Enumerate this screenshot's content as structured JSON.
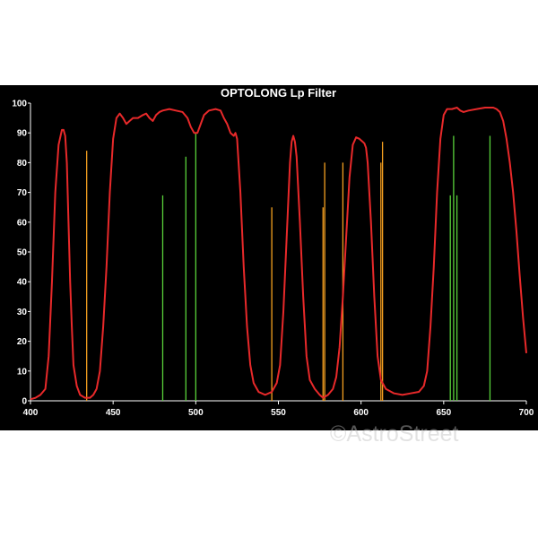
{
  "watermark": "©AstroStreet",
  "chart_data": {
    "type": "line",
    "title": "OPTOLONG Lp Filter",
    "xlabel": "",
    "ylabel": "",
    "xlim": [
      400,
      700
    ],
    "ylim": [
      0,
      100
    ],
    "x_ticks": [
      400,
      450,
      500,
      550,
      600,
      650,
      700
    ],
    "y_ticks": [
      0,
      10,
      20,
      30,
      40,
      50,
      60,
      70,
      80,
      90,
      100
    ],
    "grid": false,
    "colors": {
      "background": "#000000",
      "curve": "#e8292a",
      "axis": "#ffffff",
      "orange_lines": "#f5a020",
      "green_lines": "#59d23a"
    },
    "series": [
      {
        "role": "transmission-curve",
        "points": [
          [
            400,
            0.5
          ],
          [
            403,
            1
          ],
          [
            406,
            2
          ],
          [
            409,
            4
          ],
          [
            411,
            15
          ],
          [
            413,
            40
          ],
          [
            415,
            70
          ],
          [
            417,
            86
          ],
          [
            419,
            91
          ],
          [
            420,
            91
          ],
          [
            421,
            89
          ],
          [
            422,
            80
          ],
          [
            423,
            60
          ],
          [
            424,
            40
          ],
          [
            425,
            25
          ],
          [
            426,
            12
          ],
          [
            428,
            5
          ],
          [
            430,
            2
          ],
          [
            433,
            1
          ],
          [
            436,
            1
          ],
          [
            438,
            2
          ],
          [
            440,
            4
          ],
          [
            442,
            10
          ],
          [
            444,
            25
          ],
          [
            446,
            45
          ],
          [
            448,
            70
          ],
          [
            450,
            88
          ],
          [
            452,
            95
          ],
          [
            454,
            96.5
          ],
          [
            456,
            95
          ],
          [
            458,
            93
          ],
          [
            460,
            94
          ],
          [
            462,
            95
          ],
          [
            465,
            95
          ],
          [
            468,
            96
          ],
          [
            470,
            96.5
          ],
          [
            472,
            95
          ],
          [
            474,
            94
          ],
          [
            476,
            96
          ],
          [
            478,
            97
          ],
          [
            480,
            97.5
          ],
          [
            484,
            98
          ],
          [
            488,
            97.5
          ],
          [
            492,
            97
          ],
          [
            495,
            95
          ],
          [
            497,
            92
          ],
          [
            499,
            90
          ],
          [
            501,
            90
          ],
          [
            503,
            93
          ],
          [
            505,
            96
          ],
          [
            508,
            97.5
          ],
          [
            512,
            98
          ],
          [
            515,
            97.5
          ],
          [
            517,
            95
          ],
          [
            519,
            93
          ],
          [
            521,
            90
          ],
          [
            523,
            89
          ],
          [
            524,
            90
          ],
          [
            525,
            88
          ],
          [
            527,
            70
          ],
          [
            529,
            45
          ],
          [
            531,
            25
          ],
          [
            533,
            12
          ],
          [
            535,
            6
          ],
          [
            538,
            3
          ],
          [
            542,
            2
          ],
          [
            546,
            3
          ],
          [
            549,
            6
          ],
          [
            551,
            12
          ],
          [
            553,
            30
          ],
          [
            555,
            55
          ],
          [
            557,
            80
          ],
          [
            558,
            87
          ],
          [
            559,
            89
          ],
          [
            560,
            87
          ],
          [
            561,
            82
          ],
          [
            563,
            60
          ],
          [
            565,
            35
          ],
          [
            567,
            15
          ],
          [
            569,
            7
          ],
          [
            572,
            4
          ],
          [
            575,
            2
          ],
          [
            577,
            1
          ],
          [
            580,
            2
          ],
          [
            583,
            4
          ],
          [
            585,
            8
          ],
          [
            587,
            18
          ],
          [
            589,
            35
          ],
          [
            591,
            55
          ],
          [
            593,
            75
          ],
          [
            595,
            86
          ],
          [
            597,
            88.5
          ],
          [
            599,
            88
          ],
          [
            601,
            87
          ],
          [
            602,
            86.5
          ],
          [
            603,
            85
          ],
          [
            604,
            80
          ],
          [
            606,
            60
          ],
          [
            608,
            35
          ],
          [
            610,
            15
          ],
          [
            612,
            7
          ],
          [
            615,
            4
          ],
          [
            620,
            2.5
          ],
          [
            625,
            2
          ],
          [
            630,
            2.5
          ],
          [
            635,
            3
          ],
          [
            638,
            5
          ],
          [
            640,
            10
          ],
          [
            642,
            25
          ],
          [
            644,
            45
          ],
          [
            646,
            70
          ],
          [
            648,
            88
          ],
          [
            650,
            96
          ],
          [
            652,
            98
          ],
          [
            655,
            98
          ],
          [
            658,
            98.5
          ],
          [
            660,
            97.5
          ],
          [
            662,
            97
          ],
          [
            665,
            97.5
          ],
          [
            670,
            98
          ],
          [
            675,
            98.5
          ],
          [
            680,
            98.5
          ],
          [
            682,
            98
          ],
          [
            684,
            97
          ],
          [
            686,
            94
          ],
          [
            688,
            88
          ],
          [
            690,
            80
          ],
          [
            692,
            70
          ],
          [
            694,
            57
          ],
          [
            696,
            42
          ],
          [
            698,
            28
          ],
          [
            700,
            16
          ]
        ]
      }
    ],
    "emission_lines": [
      {
        "x": 434,
        "height": 84,
        "color": "orange"
      },
      {
        "x": 480,
        "height": 69,
        "color": "green"
      },
      {
        "x": 494,
        "height": 82,
        "color": "green"
      },
      {
        "x": 500,
        "height": 90,
        "color": "green"
      },
      {
        "x": 546,
        "height": 65,
        "color": "orange"
      },
      {
        "x": 577,
        "height": 65,
        "color": "orange"
      },
      {
        "x": 578,
        "height": 80,
        "color": "orange"
      },
      {
        "x": 589,
        "height": 80,
        "color": "orange"
      },
      {
        "x": 612,
        "height": 80,
        "color": "orange"
      },
      {
        "x": 613,
        "height": 87,
        "color": "orange"
      },
      {
        "x": 654,
        "height": 69,
        "color": "green"
      },
      {
        "x": 656,
        "height": 89,
        "color": "green"
      },
      {
        "x": 658,
        "height": 69,
        "color": "green"
      },
      {
        "x": 678,
        "height": 89,
        "color": "green"
      }
    ]
  }
}
